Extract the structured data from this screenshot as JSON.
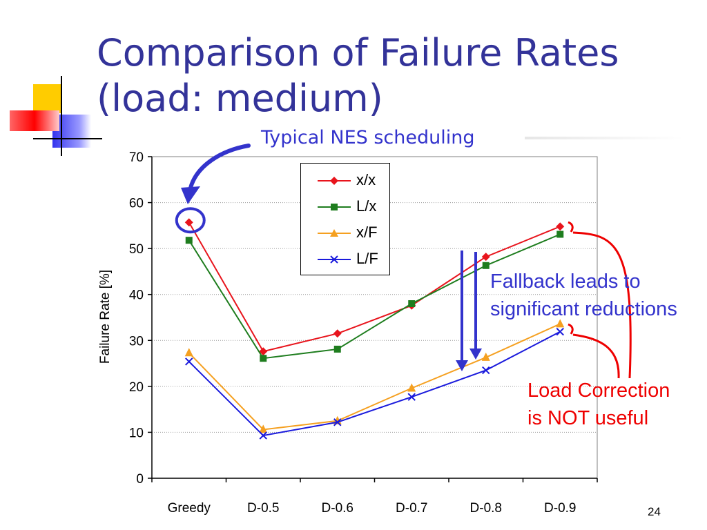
{
  "slide": {
    "title_line1": "Comparison of Failure Rates",
    "title_line2": "(load: medium)",
    "page_number": "24"
  },
  "annotations": {
    "typical": "Typical NES scheduling",
    "fallback_line1": "Fallback leads to",
    "fallback_line2": "significant reductions",
    "loadcorr_line1": "Load Correction",
    "loadcorr_line2": "is NOT useful"
  },
  "colors": {
    "title": "#333399",
    "blue_annotation": "#3333cc",
    "red_annotation": "#ee0000"
  },
  "chart_data": {
    "type": "line",
    "categories": [
      "Greedy",
      "D-0.5",
      "D-0.6",
      "D-0.7",
      "D-0.8",
      "D-0.9"
    ],
    "ylabel": "Failure Rate [%]",
    "xlabel": "",
    "ylim": [
      0,
      70
    ],
    "yticks": [
      0,
      10,
      20,
      30,
      40,
      50,
      60,
      70
    ],
    "grid": "horizontal dotted",
    "legend_position": "top-center",
    "series": [
      {
        "name": "x/x",
        "color": "#e8141c",
        "marker": "diamond",
        "values": [
          55.7,
          27.6,
          31.5,
          37.6,
          48.2,
          54.8
        ]
      },
      {
        "name": "L/x",
        "color": "#1e7d1e",
        "marker": "square",
        "values": [
          51.8,
          26.1,
          28.1,
          38.0,
          46.3,
          53.1
        ]
      },
      {
        "name": "x/F",
        "color": "#f5a020",
        "marker": "triangle",
        "values": [
          27.3,
          10.6,
          12.5,
          19.6,
          26.3,
          33.6
        ]
      },
      {
        "name": "L/F",
        "color": "#1a1adc",
        "marker": "x",
        "values": [
          25.4,
          9.3,
          12.2,
          17.7,
          23.5,
          31.9
        ]
      }
    ]
  }
}
